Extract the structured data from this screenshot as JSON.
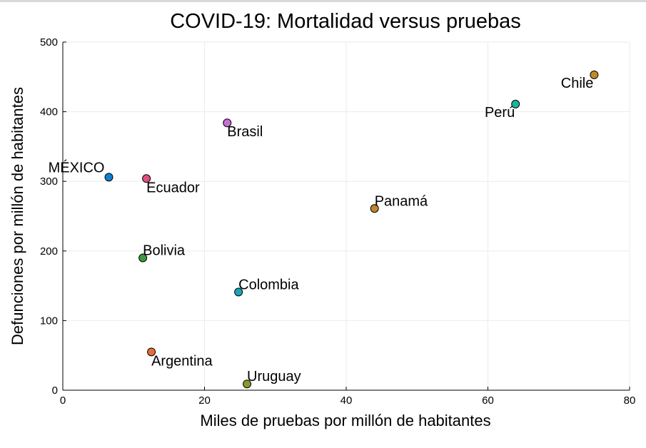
{
  "chart_data": {
    "type": "scatter",
    "title": "COVID-19: Mortalidad versus pruebas",
    "xlabel": "Miles de pruebas por millón de habitantes",
    "ylabel": "Defunciones por millón de habitantes",
    "xlim": [
      0,
      80
    ],
    "ylim": [
      0,
      500
    ],
    "xticks": [
      0,
      20,
      40,
      60,
      80
    ],
    "yticks": [
      0,
      100,
      200,
      300,
      400,
      500
    ],
    "grid": true,
    "legend": "none",
    "points": [
      {
        "label": "MÉXICO",
        "x": 6.5,
        "y": 306,
        "color": "#0f7fd0",
        "label_color": "#e8000b",
        "anchor": "end",
        "pos": "upper-left"
      },
      {
        "label": "Ecuador",
        "x": 11.8,
        "y": 304,
        "color": "#e0507a",
        "label_color": "#000000",
        "anchor": "start",
        "pos": "lower-right"
      },
      {
        "label": "Brasil",
        "x": 23.2,
        "y": 384,
        "color": "#c86ed6",
        "label_color": "#000000",
        "anchor": "start",
        "pos": "lower-right"
      },
      {
        "label": "Bolivia",
        "x": 11.3,
        "y": 190,
        "color": "#3e9a3e",
        "label_color": "#000000",
        "anchor": "start",
        "pos": "upper-right"
      },
      {
        "label": "Colombia",
        "x": 24.8,
        "y": 141,
        "color": "#1aa5b8",
        "label_color": "#000000",
        "anchor": "start",
        "pos": "upper-right"
      },
      {
        "label": "Argentina",
        "x": 12.5,
        "y": 55,
        "color": "#e2703a",
        "label_color": "#000000",
        "anchor": "start",
        "pos": "lower-right"
      },
      {
        "label": "Uruguay",
        "x": 26.0,
        "y": 9,
        "color": "#8a9a2a",
        "label_color": "#000000",
        "anchor": "start",
        "pos": "upper-right"
      },
      {
        "label": "Panamá",
        "x": 44.0,
        "y": 261,
        "color": "#c1862b",
        "label_color": "#000000",
        "anchor": "start",
        "pos": "upper-right"
      },
      {
        "label": "Perú",
        "x": 63.9,
        "y": 411,
        "color": "#1ab59a",
        "label_color": "#000000",
        "anchor": "end",
        "pos": "lower-left"
      },
      {
        "label": "Chile",
        "x": 75.0,
        "y": 453,
        "color": "#bf8a2a",
        "label_color": "#000000",
        "anchor": "end",
        "pos": "lower-left"
      }
    ]
  }
}
